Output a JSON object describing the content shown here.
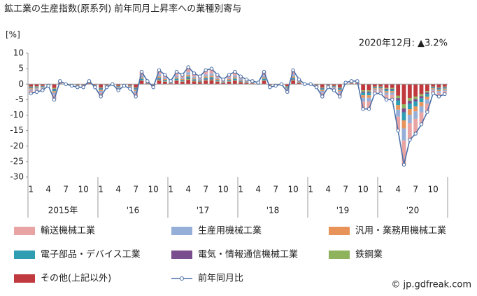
{
  "chart_data": {
    "type": "bar",
    "title": "鉱工業の生産指数(原系列) 前年同月上昇率への業種別寄与",
    "y_axis_label": "[%]",
    "annotation": "2020年12月: ▲3.2%",
    "source": "© jp.gdfreak.com",
    "ylim": [
      -30,
      10
    ],
    "yticks": [
      10,
      5,
      0,
      -5,
      -10,
      -15,
      -20,
      -25,
      -30
    ],
    "categories": [
      "1",
      null,
      null,
      "4",
      null,
      null,
      "7",
      null,
      null,
      "10",
      null,
      null,
      "1",
      null,
      null,
      "4",
      null,
      null,
      "7",
      null,
      null,
      "10",
      null,
      null,
      "1",
      null,
      null,
      "4",
      null,
      null,
      "7",
      null,
      null,
      "10",
      null,
      null,
      "1",
      null,
      null,
      "4",
      null,
      null,
      "7",
      null,
      null,
      "10",
      null,
      null,
      "1",
      null,
      null,
      "4",
      null,
      null,
      "7",
      null,
      null,
      "10",
      null,
      null,
      "1",
      null,
      null,
      "4",
      null,
      null,
      "7",
      null,
      null,
      "10",
      null,
      null
    ],
    "year_labels": [
      "2015年",
      "'16",
      "'17",
      "'18",
      "'19",
      "'20"
    ],
    "series": [
      {
        "name": "輸送機械工業",
        "color": "#e8a3a3",
        "values": [
          -0.9,
          -0.75,
          -0.6,
          -0.15,
          -1.5,
          0.3,
          0,
          -0.15,
          -0.3,
          -0.3,
          0.3,
          -0.3,
          -1.2,
          -0.3,
          0,
          -0.6,
          -0.15,
          -0.45,
          -1.2,
          1.2,
          0.3,
          -0.3,
          1.35,
          0.9,
          0.3,
          1.2,
          0.9,
          1.65,
          1.05,
          0.75,
          1.35,
          1.5,
          0.9,
          0.45,
          0.9,
          1.2,
          0.75,
          0.45,
          0.3,
          0.15,
          1.2,
          -0.3,
          -0.15,
          0,
          -0.75,
          1.35,
          0.45,
          0,
          0,
          -0.3,
          -1.2,
          -0.3,
          -0.6,
          -1.2,
          0.15,
          0.3,
          0.3,
          -2.4,
          -2.4,
          -0.9,
          -0.9,
          -1.5,
          -1.5,
          -4.5,
          -7.8,
          -5.4,
          -4.8,
          -3.9,
          -2.7,
          -0.9,
          -1.2,
          -0.96
        ]
      },
      {
        "name": "生産用機械工業",
        "color": "#95afd8",
        "values": [
          -0.45,
          -0.38,
          -0.3,
          -0.08,
          -0.75,
          0.15,
          0,
          -0.08,
          -0.15,
          -0.15,
          0.15,
          -0.15,
          -0.6,
          -0.15,
          0,
          -0.3,
          -0.08,
          -0.23,
          -0.6,
          0.6,
          0.15,
          -0.15,
          0.68,
          0.45,
          0.15,
          0.6,
          0.45,
          0.83,
          0.53,
          0.38,
          0.68,
          0.75,
          0.45,
          0.23,
          0.45,
          0.6,
          0.38,
          0.23,
          0.15,
          0.08,
          0.6,
          -0.15,
          -0.08,
          0,
          -0.38,
          0.68,
          0.23,
          0,
          0,
          -0.15,
          -0.6,
          -0.15,
          -0.3,
          -0.6,
          0.08,
          0.15,
          0.15,
          -1.2,
          -1.2,
          -0.45,
          -0.45,
          -0.75,
          -0.75,
          -2.25,
          -3.9,
          -2.7,
          -2.4,
          -1.95,
          -1.35,
          -0.45,
          -0.6,
          -0.48
        ]
      },
      {
        "name": "汎用・業務用機械工業",
        "color": "#e8935a",
        "values": [
          -0.3,
          -0.25,
          -0.2,
          -0.05,
          -0.5,
          0.1,
          0,
          -0.05,
          -0.1,
          -0.1,
          0.1,
          -0.1,
          -0.4,
          -0.1,
          0,
          -0.2,
          -0.05,
          -0.15,
          -0.4,
          0.4,
          0.1,
          -0.1,
          0.45,
          0.3,
          0.1,
          0.4,
          0.3,
          0.55,
          0.35,
          0.25,
          0.45,
          0.5,
          0.3,
          0.15,
          0.3,
          0.4,
          0.25,
          0.15,
          0.1,
          0.05,
          0.4,
          -0.1,
          -0.05,
          0,
          -0.25,
          0.45,
          0.15,
          0,
          0,
          -0.1,
          -0.4,
          -0.1,
          -0.2,
          -0.4,
          0.05,
          0.1,
          0.1,
          -0.8,
          -0.8,
          -0.3,
          -0.3,
          -0.5,
          -0.5,
          -1.5,
          -2.6,
          -1.8,
          -1.6,
          -1.3,
          -0.9,
          -0.3,
          -0.4,
          -0.32
        ]
      },
      {
        "name": "電子部品・デバイス工業",
        "color": "#2f9db2",
        "values": [
          -0.3,
          -0.25,
          -0.2,
          -0.05,
          -0.5,
          0.1,
          0,
          -0.05,
          -0.1,
          -0.1,
          0.1,
          -0.1,
          -0.4,
          -0.1,
          0,
          -0.2,
          -0.05,
          -0.15,
          -0.4,
          0.4,
          0.1,
          -0.1,
          0.45,
          0.3,
          0.1,
          0.4,
          0.3,
          0.55,
          0.35,
          0.25,
          0.45,
          0.5,
          0.3,
          0.15,
          0.3,
          0.4,
          0.25,
          0.15,
          0.1,
          0.05,
          0.4,
          -0.1,
          -0.05,
          0,
          -0.25,
          0.45,
          0.15,
          0,
          0,
          -0.1,
          -0.4,
          -0.1,
          -0.2,
          -0.4,
          0.05,
          0.1,
          0.1,
          -0.8,
          -0.8,
          -0.3,
          -0.3,
          -0.5,
          -0.5,
          -1.5,
          -2.6,
          -1.8,
          -1.6,
          -1.3,
          -0.9,
          -0.3,
          -0.4,
          -0.32
        ]
      },
      {
        "name": "電気・情報通信機械工業",
        "color": "#7a4e8e",
        "values": [
          -0.15,
          -0.13,
          -0.1,
          -0.03,
          -0.25,
          0.05,
          0,
          -0.03,
          -0.05,
          -0.05,
          0.05,
          -0.05,
          -0.2,
          -0.05,
          0,
          -0.1,
          -0.03,
          -0.08,
          -0.2,
          0.2,
          0.05,
          -0.05,
          0.23,
          0.15,
          0.05,
          0.2,
          0.15,
          0.28,
          0.18,
          0.13,
          0.23,
          0.25,
          0.15,
          0.08,
          0.15,
          0.2,
          0.13,
          0.08,
          0.05,
          0.03,
          0.2,
          -0.05,
          -0.03,
          0,
          -0.13,
          0.23,
          0.08,
          0,
          0,
          -0.05,
          -0.2,
          -0.05,
          -0.1,
          -0.2,
          0.03,
          0.05,
          0.05,
          -0.4,
          -0.4,
          -0.15,
          -0.15,
          -0.25,
          -0.25,
          -0.75,
          -1.3,
          -0.9,
          -0.8,
          -0.65,
          -0.45,
          -0.15,
          -0.2,
          -0.16
        ]
      },
      {
        "name": "鉄鋼業",
        "color": "#8fb35c",
        "values": [
          -0.15,
          -0.13,
          -0.1,
          -0.03,
          -0.25,
          0.05,
          0,
          -0.03,
          -0.05,
          -0.05,
          0.05,
          -0.05,
          -0.2,
          -0.05,
          0,
          -0.1,
          -0.03,
          -0.08,
          -0.2,
          0.2,
          0.05,
          -0.05,
          0.23,
          0.15,
          0.05,
          0.2,
          0.15,
          0.28,
          0.18,
          0.13,
          0.23,
          0.25,
          0.15,
          0.08,
          0.15,
          0.2,
          0.13,
          0.08,
          0.05,
          0.03,
          0.2,
          -0.05,
          -0.03,
          0,
          -0.13,
          0.23,
          0.08,
          0,
          0,
          -0.05,
          -0.2,
          -0.05,
          -0.1,
          -0.2,
          0.03,
          0.05,
          0.05,
          -0.4,
          -0.4,
          -0.15,
          -0.15,
          -0.25,
          -0.25,
          -0.75,
          -1.3,
          -0.9,
          -0.8,
          -0.65,
          -0.45,
          -0.15,
          -0.2,
          -0.16
        ]
      },
      {
        "name": "その他(上記以外)",
        "color": "#c0393f",
        "values": [
          -0.75,
          -0.63,
          -0.5,
          -0.13,
          -1.25,
          0.25,
          0,
          -0.13,
          -0.25,
          -0.25,
          0.25,
          -0.25,
          -1,
          -0.25,
          0,
          -0.5,
          -0.13,
          -0.38,
          -1,
          1,
          0.25,
          -0.25,
          1.13,
          0.75,
          0.25,
          1,
          0.75,
          1.38,
          0.88,
          0.63,
          1.13,
          1.25,
          0.75,
          0.38,
          0.75,
          1,
          0.63,
          0.38,
          0.25,
          0.13,
          1,
          -0.25,
          -0.13,
          0,
          -0.63,
          1.13,
          0.38,
          0,
          0,
          -0.25,
          -1,
          -0.25,
          -0.5,
          -1,
          0.13,
          0.25,
          0.25,
          -2,
          -2,
          -0.75,
          -0.75,
          -1.25,
          -1.25,
          -3.75,
          -6.5,
          -4.5,
          -4,
          -3.25,
          -2.25,
          -0.75,
          -1,
          -0.8
        ]
      }
    ],
    "line": {
      "name": "前年同月比",
      "color": "#4a6fa8",
      "values": [
        -3,
        -2.5,
        -2,
        -0.5,
        -5,
        1,
        0,
        -0.5,
        -1,
        -1,
        1,
        -1,
        -4,
        -1,
        0,
        -2,
        -0.5,
        -1.5,
        -4,
        4,
        1,
        -1,
        4.5,
        3,
        1,
        4,
        3,
        5.5,
        3.5,
        2.5,
        4.5,
        5,
        3,
        1.5,
        3,
        4,
        2.5,
        1.5,
        1,
        0.5,
        4,
        -1,
        -0.5,
        0,
        -2.5,
        4.5,
        1.5,
        0,
        0,
        -1,
        -4,
        -1,
        -2,
        -4,
        0.5,
        1,
        1,
        -8,
        -8,
        -3,
        -3,
        -5,
        -5,
        -15,
        -26,
        -18,
        -16,
        -13,
        -9,
        -3,
        -4,
        -3.2
      ]
    }
  }
}
